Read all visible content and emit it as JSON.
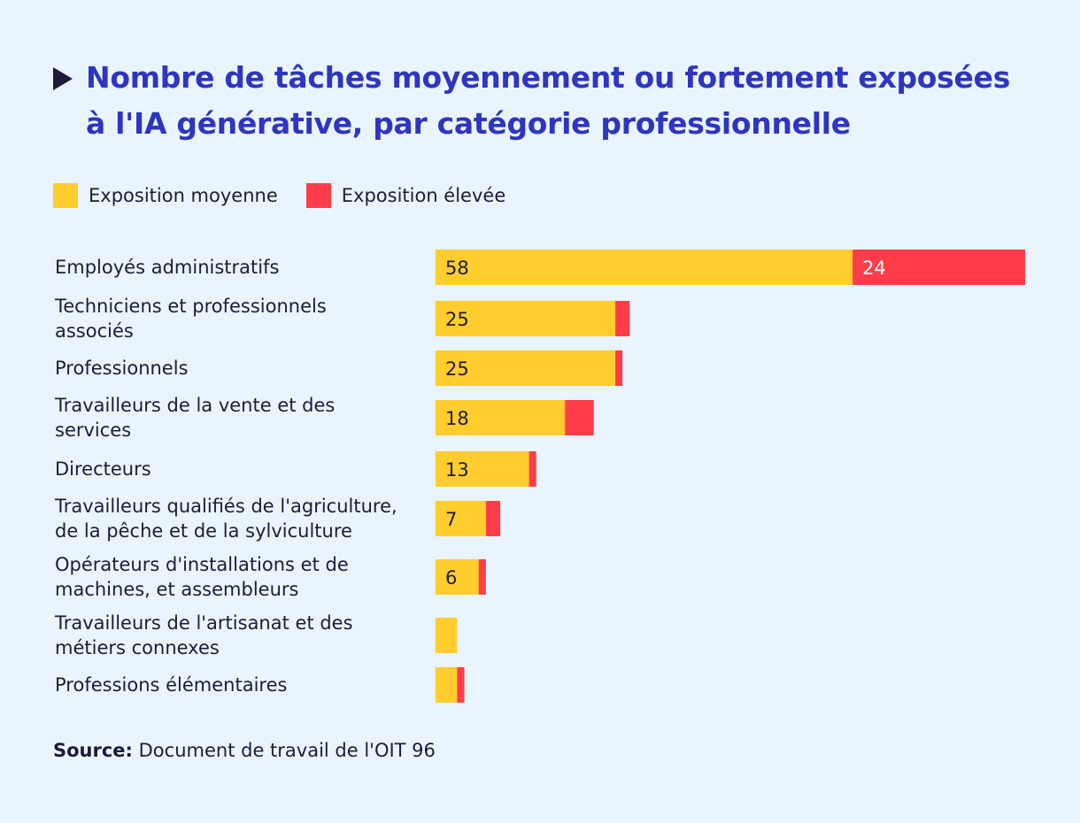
{
  "title": "Nombre de tâches moyennement ou fortement exposées à l'IA générative, par catégorie professionnelle",
  "legend": {
    "medium_label": "Exposition moyenne",
    "high_label": "Exposition élevée"
  },
  "colors": {
    "medium": "#ffcd2e",
    "high": "#ff3d4a",
    "title": "#2e35c0",
    "text": "#1e1b3a",
    "background": "#eaf4fc"
  },
  "chart_data": {
    "type": "bar",
    "orientation": "horizontal",
    "stacked": true,
    "title": "Nombre de tâches moyennement ou fortement exposées à l'IA générative, par catégorie professionnelle",
    "categories": [
      [
        "Employés administratifs"
      ],
      [
        "Techniciens et professionnels",
        "associés"
      ],
      [
        "Professionnels"
      ],
      [
        "Travailleurs de la vente et des",
        "services"
      ],
      [
        "Directeurs"
      ],
      [
        "Travailleurs qualifiés de l'agriculture,",
        "de la pêche et de la sylviculture"
      ],
      [
        "Opérateurs d'installations et de",
        "machines, et assembleurs"
      ],
      [
        "Travailleurs de l'artisanat et des",
        "métiers connexes"
      ],
      [
        "Professions élémentaires"
      ]
    ],
    "series": [
      {
        "name": "Exposition moyenne",
        "values": [
          58,
          25,
          25,
          18,
          13,
          7,
          6,
          3,
          3
        ],
        "labels": [
          "58",
          "25",
          "25",
          "18",
          "13",
          "7",
          "6",
          "",
          ""
        ]
      },
      {
        "name": "Exposition élevée",
        "values": [
          24,
          2,
          1,
          4,
          1,
          2,
          1,
          0,
          1
        ],
        "labels": [
          "24",
          "",
          "",
          "",
          "",
          "",
          "",
          "",
          ""
        ]
      }
    ],
    "xlabel": "",
    "ylabel": "",
    "xlim": [
      0,
      82
    ],
    "grid": false,
    "legend_position": "top-left"
  },
  "source": {
    "label": "Source:",
    "text": "Document de travail de l'OIT 96"
  }
}
